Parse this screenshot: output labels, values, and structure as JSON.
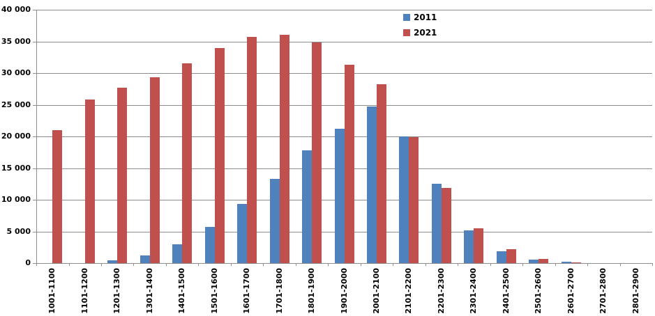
{
  "chart_data": {
    "type": "bar",
    "title": "",
    "xlabel": "",
    "ylabel": "",
    "categories": [
      "1001-1100",
      "1101-1200",
      "1201-1300",
      "1301-1400",
      "1401-1500",
      "1501-1600",
      "1601-1700",
      "1701-1800",
      "1801-1900",
      "1901-2000",
      "2001-2100",
      "2101-2200",
      "2201-2300",
      "2301-2400",
      "2401-2500",
      "2501-2600",
      "2601-2700",
      "2701-2800",
      "2801-2900"
    ],
    "series": [
      {
        "name": "2011",
        "color": "#4F81BD",
        "values": [
          0,
          0,
          400,
          1200,
          3000,
          5700,
          9300,
          13300,
          17800,
          21200,
          24700,
          20000,
          12500,
          5200,
          1900,
          600,
          200,
          0,
          0
        ]
      },
      {
        "name": "2021",
        "color": "#C0504D",
        "values": [
          21000,
          25800,
          27700,
          29300,
          31500,
          34000,
          35700,
          36000,
          34800,
          31300,
          28200,
          19900,
          11900,
          5500,
          2200,
          700,
          150,
          0,
          0
        ]
      }
    ],
    "ylim": [
      0,
      40000
    ],
    "ytick_step": 5000,
    "ytick_labels": [
      "0",
      "5 000",
      "10 000",
      "15 000",
      "20 000",
      "25 000",
      "30 000",
      "35 000",
      "40 000"
    ],
    "grid": true,
    "legend_position": "inside-top-right",
    "bar_orientation": "vertical"
  },
  "colors": {
    "series_2011": "#4F81BD",
    "series_2021": "#C0504D",
    "gridline": "#8C8C8C",
    "axis": "#8C8C8C",
    "text": "#000000",
    "background": "#FFFFFF"
  }
}
